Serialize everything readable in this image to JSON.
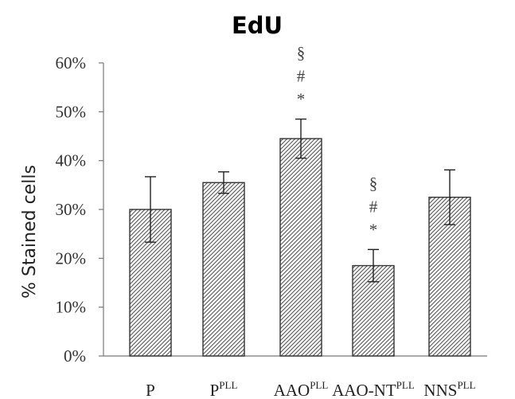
{
  "chart_data": {
    "type": "bar",
    "title": "EdU",
    "ylabel": "% Stained cells",
    "ylim": [
      0,
      60
    ],
    "yticks": [
      "0%",
      "10%",
      "20%",
      "30%",
      "40%",
      "50%",
      "60%"
    ],
    "categories": [
      {
        "base": "P",
        "sup": ""
      },
      {
        "base": "P",
        "sup": "PLL"
      },
      {
        "base": "AAO",
        "sup": "PLL"
      },
      {
        "base": "AAO-NT",
        "sup": "PLL"
      },
      {
        "base": "NNS",
        "sup": "PLL"
      }
    ],
    "values": [
      30,
      35.5,
      44.5,
      18.5,
      32.5
    ],
    "error": [
      6.7,
      2.2,
      4.0,
      3.3,
      5.6
    ],
    "annotations": [
      [],
      [],
      [
        "§",
        "#",
        "*"
      ],
      [
        "§",
        "#",
        "*"
      ],
      []
    ],
    "bar_fill": "hatched",
    "grid": false,
    "legend": "none"
  },
  "colors": {
    "bar_stroke": "#333333",
    "hatch": "#555555",
    "axis": "#777777",
    "text": "#222222"
  }
}
